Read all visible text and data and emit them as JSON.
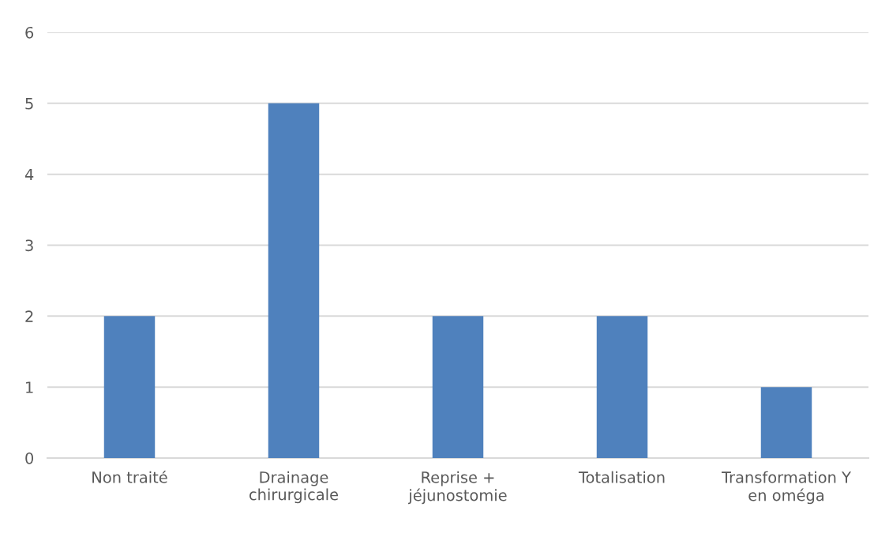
{
  "chart_data": {
    "type": "bar",
    "categories": [
      "Non traité",
      "Drainage\nchirurgicale",
      "Reprise +\njéjunostomie",
      "Totalisation",
      "Transformation Y\nen oméga"
    ],
    "values": [
      2,
      5,
      2,
      2,
      1
    ],
    "color": "#4f81bd",
    "ylim": [
      0,
      6
    ],
    "yticks": [
      0,
      1,
      2,
      3,
      4,
      5,
      6
    ],
    "grid": "y"
  }
}
